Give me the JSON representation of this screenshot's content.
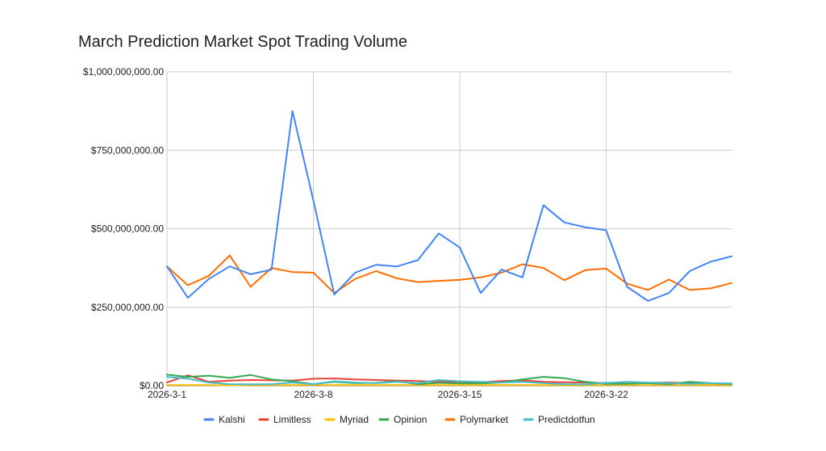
{
  "chart_data": {
    "type": "line",
    "title": "March Prediction Market Spot Trading Volume",
    "xlabel": "",
    "ylabel": "",
    "ylim": [
      0,
      1000000000
    ],
    "y_ticks": [
      {
        "value": 0,
        "label": "$0.00"
      },
      {
        "value": 250000000,
        "label": "$250,000,000.00"
      },
      {
        "value": 500000000,
        "label": "$500,000,000.00"
      },
      {
        "value": 750000000,
        "label": "$750,000,000.00"
      },
      {
        "value": 1000000000,
        "label": "$1,000,000,000.00"
      }
    ],
    "x_ticks": [
      {
        "day": 1,
        "label": "2026-3-1"
      },
      {
        "day": 8,
        "label": "2026-3-8"
      },
      {
        "day": 15,
        "label": "2026-3-15"
      },
      {
        "day": 22,
        "label": "2026-3-22"
      }
    ],
    "x": [
      1,
      2,
      3,
      4,
      5,
      6,
      7,
      8,
      9,
      10,
      11,
      12,
      13,
      14,
      15,
      16,
      17,
      18,
      19,
      20,
      21,
      22,
      23,
      24,
      25,
      26,
      27,
      28
    ],
    "grid": true,
    "legend_position": "bottom",
    "series": [
      {
        "name": "Kalshi",
        "color": "#4285f4",
        "values": [
          380000000,
          280000000,
          340000000,
          380000000,
          355000000,
          370000000,
          875000000,
          590000000,
          290000000,
          360000000,
          385000000,
          380000000,
          400000000,
          485000000,
          440000000,
          295000000,
          370000000,
          345000000,
          575000000,
          520000000,
          505000000,
          495000000,
          315000000,
          270000000,
          295000000,
          365000000,
          395000000,
          412000000
        ]
      },
      {
        "name": "Limitless",
        "color": "#ea4335",
        "values": [
          10000000,
          33000000,
          12000000,
          16000000,
          18000000,
          17000000,
          16000000,
          22000000,
          23000000,
          20000000,
          18000000,
          16000000,
          15000000,
          12000000,
          12000000,
          11000000,
          15000000,
          17000000,
          12000000,
          11000000,
          10000000,
          8000000,
          6000000,
          9000000,
          10000000,
          8000000,
          7000000,
          6000000
        ]
      },
      {
        "name": "Myriad",
        "color": "#fbbc04",
        "values": [
          2000000,
          2000000,
          2000000,
          1000000,
          2000000,
          2000000,
          2000000,
          2000000,
          2000000,
          2000000,
          2000000,
          2000000,
          2000000,
          2000000,
          2000000,
          2000000,
          2000000,
          2000000,
          2000000,
          2000000,
          2000000,
          2000000,
          2000000,
          2000000,
          2000000,
          2000000,
          2000000,
          2000000
        ]
      },
      {
        "name": "Opinion",
        "color": "#34a853",
        "values": [
          35000000,
          28000000,
          32000000,
          25000000,
          34000000,
          20000000,
          14000000,
          5000000,
          12000000,
          8000000,
          9000000,
          14000000,
          5000000,
          9000000,
          7000000,
          7000000,
          10000000,
          20000000,
          28000000,
          24000000,
          12000000,
          6000000,
          6000000,
          8000000,
          5000000,
          12000000,
          8000000,
          5000000
        ]
      },
      {
        "name": "Polymarket",
        "color": "#ff6d01",
        "values": [
          380000000,
          320000000,
          350000000,
          415000000,
          315000000,
          375000000,
          362000000,
          360000000,
          295000000,
          340000000,
          365000000,
          342000000,
          330000000,
          334000000,
          337000000,
          345000000,
          360000000,
          387000000,
          375000000,
          336000000,
          368000000,
          373000000,
          325000000,
          305000000,
          338000000,
          305000000,
          310000000,
          327000000
        ]
      },
      {
        "name": "Predictdotfun",
        "color": "#46bdc6",
        "values": [
          28000000,
          22000000,
          10000000,
          5000000,
          4000000,
          5000000,
          10000000,
          5000000,
          14000000,
          10000000,
          8000000,
          12000000,
          8000000,
          18000000,
          14000000,
          12000000,
          10000000,
          12000000,
          8000000,
          5000000,
          4000000,
          9000000,
          12000000,
          10000000,
          8000000,
          6000000,
          8000000,
          7000000
        ]
      }
    ]
  }
}
